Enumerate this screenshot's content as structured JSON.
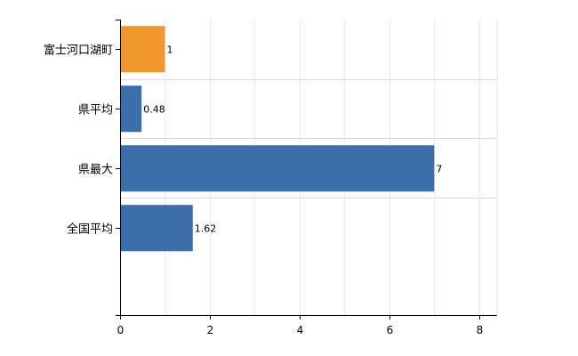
{
  "chart_data": {
    "type": "bar",
    "orientation": "horizontal",
    "categories": [
      "富士河口湖町",
      "県平均",
      "県最大",
      "全国平均"
    ],
    "values": [
      1,
      0.48,
      7,
      1.62
    ],
    "data_labels": [
      "1",
      "0.48",
      "7",
      "1.62"
    ],
    "bar_colors": [
      "#f0962f",
      "#3c6eaa",
      "#3c6eaa",
      "#3c6eaa"
    ],
    "xlim": [
      0,
      8.4
    ],
    "x_ticks": [
      0,
      2,
      4,
      6,
      8
    ],
    "x_tick_labels": [
      "0",
      "2",
      "4",
      "6",
      "8"
    ],
    "grid": true,
    "legend": "none",
    "title": "",
    "xlabel": "",
    "ylabel": ""
  }
}
